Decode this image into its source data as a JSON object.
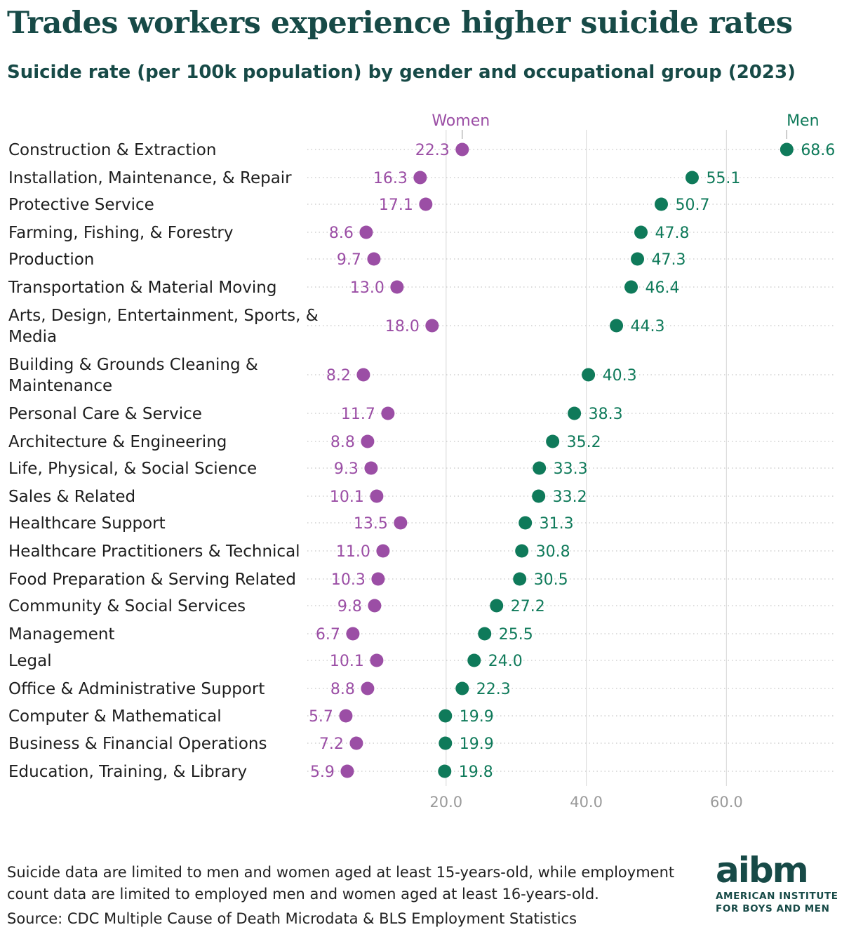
{
  "title": "Trades workers experience higher suicide rates",
  "subtitle": "Suicide rate (per 100k population) by gender and occupational group (2023)",
  "footnote": "Suicide data are limited to men and women aged at least 15-years-old, while employment count data are limited to employed men and women aged at least 16-years-old.",
  "source": "Source: CDC Multiple Cause of Death Microdata & BLS Employment Statistics",
  "logo": {
    "mark": "aibm",
    "line1": "AMERICAN INSTITUTE",
    "line2": "FOR BOYS AND MEN"
  },
  "colors": {
    "women": "#9b4ea5",
    "men": "#0f7a5a",
    "title": "#174a47",
    "grid": "#dddddd",
    "tick": "#9a9a9a"
  },
  "chart_data": {
    "type": "dumbbell",
    "title": "Trades workers experience higher suicide rates",
    "xlabel": "",
    "ylabel": "",
    "xlim": [
      0,
      75
    ],
    "xticks": [
      20,
      40,
      60
    ],
    "tick_labels": [
      "20.0",
      "40.0",
      "60.0"
    ],
    "legend": [
      "Women",
      "Men"
    ],
    "series": [
      {
        "name": "Women",
        "values": [
          22.3,
          16.3,
          17.1,
          8.6,
          9.7,
          13.0,
          18.0,
          8.2,
          11.7,
          8.8,
          9.3,
          10.1,
          13.5,
          11.0,
          10.3,
          9.8,
          6.7,
          10.1,
          8.8,
          5.7,
          7.2,
          5.9
        ]
      },
      {
        "name": "Men",
        "values": [
          68.6,
          55.1,
          50.7,
          47.8,
          47.3,
          46.4,
          44.3,
          40.3,
          38.3,
          35.2,
          33.3,
          33.2,
          31.3,
          30.8,
          30.5,
          27.2,
          25.5,
          24.0,
          22.3,
          19.9,
          19.9,
          19.8
        ]
      }
    ],
    "categories": [
      [
        "Construction & Extraction"
      ],
      [
        "Installation, Maintenance, & Repair"
      ],
      [
        "Protective Service"
      ],
      [
        "Farming, Fishing, & Forestry"
      ],
      [
        "Production"
      ],
      [
        "Transportation & Material Moving"
      ],
      [
        "Arts, Design, Entertainment, Sports, &",
        "Media"
      ],
      [
        "Building & Grounds Cleaning &",
        "Maintenance"
      ],
      [
        "Personal Care & Service"
      ],
      [
        "Architecture & Engineering"
      ],
      [
        "Life, Physical, & Social Science"
      ],
      [
        "Sales & Related"
      ],
      [
        "Healthcare Support"
      ],
      [
        "Healthcare Practitioners & Technical"
      ],
      [
        "Food Preparation & Serving Related"
      ],
      [
        "Community & Social Services"
      ],
      [
        "Management"
      ],
      [
        "Legal"
      ],
      [
        "Office & Administrative Support"
      ],
      [
        "Computer & Mathematical"
      ],
      [
        "Business & Financial Operations"
      ],
      [
        "Education, Training, & Library"
      ]
    ]
  }
}
